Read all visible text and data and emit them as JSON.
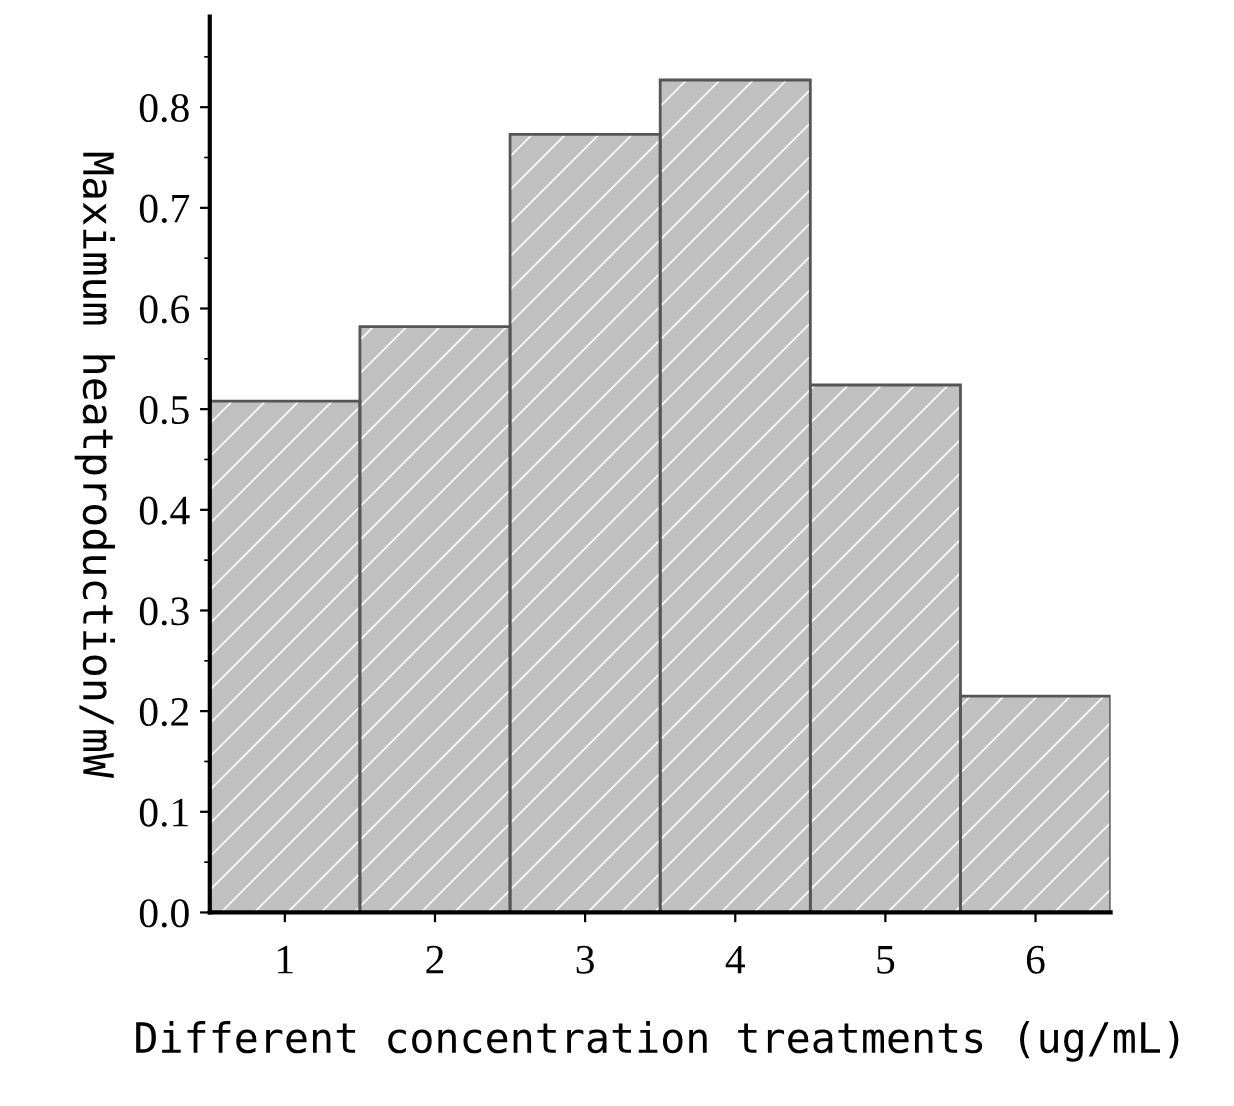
{
  "chart_data": {
    "type": "bar",
    "xlabel": "Different concentration treatments (ug/mL)",
    "ylabel": "Maximum heatproduction/mW",
    "categories": [
      "1",
      "2",
      "3",
      "4",
      "5",
      "6"
    ],
    "values": [
      0.508,
      0.582,
      0.773,
      0.827,
      0.524,
      0.215
    ],
    "color": "#c0c0c0",
    "ylim": [
      0,
      0.89
    ],
    "yticks": [
      {
        "value": 0,
        "label": "0.0"
      },
      0.1,
      0.2,
      0.3,
      0.4,
      0.5,
      0.6,
      0.7,
      0.8
    ],
    "grid": false
  }
}
